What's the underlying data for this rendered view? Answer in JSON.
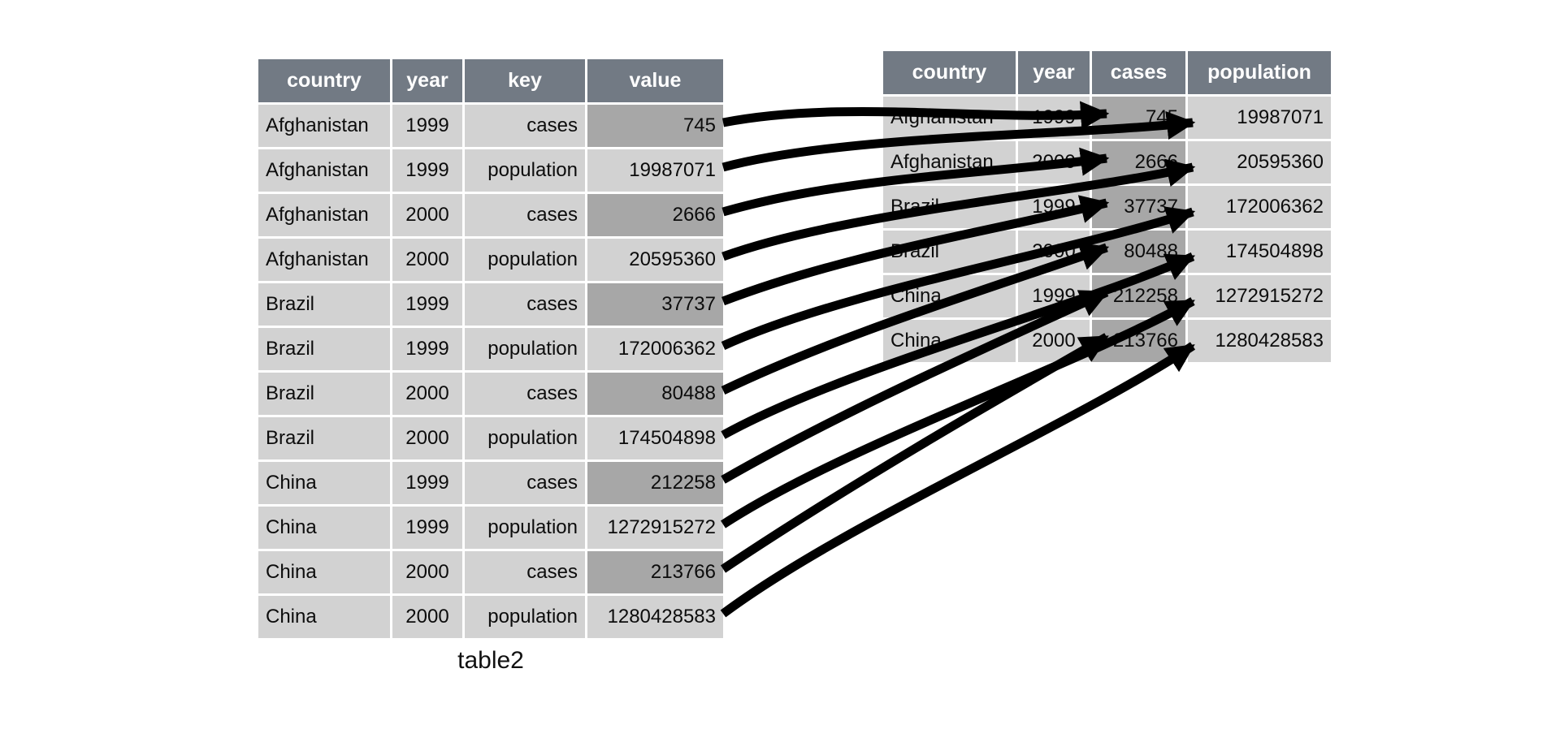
{
  "left_table": {
    "caption": "table2",
    "columns": [
      "country",
      "year",
      "key",
      "value"
    ],
    "rows": [
      {
        "country": "Afghanistan",
        "year": "1999",
        "key": "cases",
        "value": "745",
        "value_highlight": true
      },
      {
        "country": "Afghanistan",
        "year": "1999",
        "key": "population",
        "value": "19987071",
        "value_highlight": false
      },
      {
        "country": "Afghanistan",
        "year": "2000",
        "key": "cases",
        "value": "2666",
        "value_highlight": true
      },
      {
        "country": "Afghanistan",
        "year": "2000",
        "key": "population",
        "value": "20595360",
        "value_highlight": false
      },
      {
        "country": "Brazil",
        "year": "1999",
        "key": "cases",
        "value": "37737",
        "value_highlight": true
      },
      {
        "country": "Brazil",
        "year": "1999",
        "key": "population",
        "value": "172006362",
        "value_highlight": false
      },
      {
        "country": "Brazil",
        "year": "2000",
        "key": "cases",
        "value": "80488",
        "value_highlight": true
      },
      {
        "country": "Brazil",
        "year": "2000",
        "key": "population",
        "value": "174504898",
        "value_highlight": false
      },
      {
        "country": "China",
        "year": "1999",
        "key": "cases",
        "value": "212258",
        "value_highlight": true
      },
      {
        "country": "China",
        "year": "1999",
        "key": "population",
        "value": "1272915272",
        "value_highlight": false
      },
      {
        "country": "China",
        "year": "2000",
        "key": "cases",
        "value": "213766",
        "value_highlight": true
      },
      {
        "country": "China",
        "year": "2000",
        "key": "population",
        "value": "1280428583",
        "value_highlight": false
      }
    ]
  },
  "right_table": {
    "columns": [
      "country",
      "year",
      "cases",
      "population"
    ],
    "highlight_column": "cases",
    "rows": [
      {
        "country": "Afghanistan",
        "year": "1999",
        "cases": "745",
        "population": "19987071"
      },
      {
        "country": "Afghanistan",
        "year": "2000",
        "cases": "2666",
        "population": "20595360"
      },
      {
        "country": "Brazil",
        "year": "1999",
        "cases": "37737",
        "population": "172006362"
      },
      {
        "country": "Brazil",
        "year": "2000",
        "cases": "80488",
        "population": "174504898"
      },
      {
        "country": "China",
        "year": "1999",
        "cases": "212258",
        "population": "1272915272"
      },
      {
        "country": "China",
        "year": "2000",
        "cases": "213766",
        "population": "1280428583"
      }
    ]
  },
  "arrows": [
    {
      "from_row": 0,
      "to_row": 0,
      "to_col": "cases"
    },
    {
      "from_row": 1,
      "to_row": 0,
      "to_col": "population"
    },
    {
      "from_row": 2,
      "to_row": 1,
      "to_col": "cases"
    },
    {
      "from_row": 3,
      "to_row": 1,
      "to_col": "population"
    },
    {
      "from_row": 4,
      "to_row": 2,
      "to_col": "cases"
    },
    {
      "from_row": 5,
      "to_row": 2,
      "to_col": "population"
    },
    {
      "from_row": 6,
      "to_row": 3,
      "to_col": "cases"
    },
    {
      "from_row": 7,
      "to_row": 3,
      "to_col": "population"
    },
    {
      "from_row": 8,
      "to_row": 4,
      "to_col": "cases"
    },
    {
      "from_row": 9,
      "to_row": 4,
      "to_col": "population"
    },
    {
      "from_row": 10,
      "to_row": 5,
      "to_col": "cases"
    },
    {
      "from_row": 11,
      "to_row": 5,
      "to_col": "population"
    }
  ],
  "colors": {
    "header_bg": "#727a84",
    "header_text": "#ffffff",
    "cell_bg": "#d2d2d2",
    "highlight_bg": "#a7a7a7",
    "arrow": "#000000",
    "text": "#0c0c0c",
    "background": "#ffffff"
  }
}
